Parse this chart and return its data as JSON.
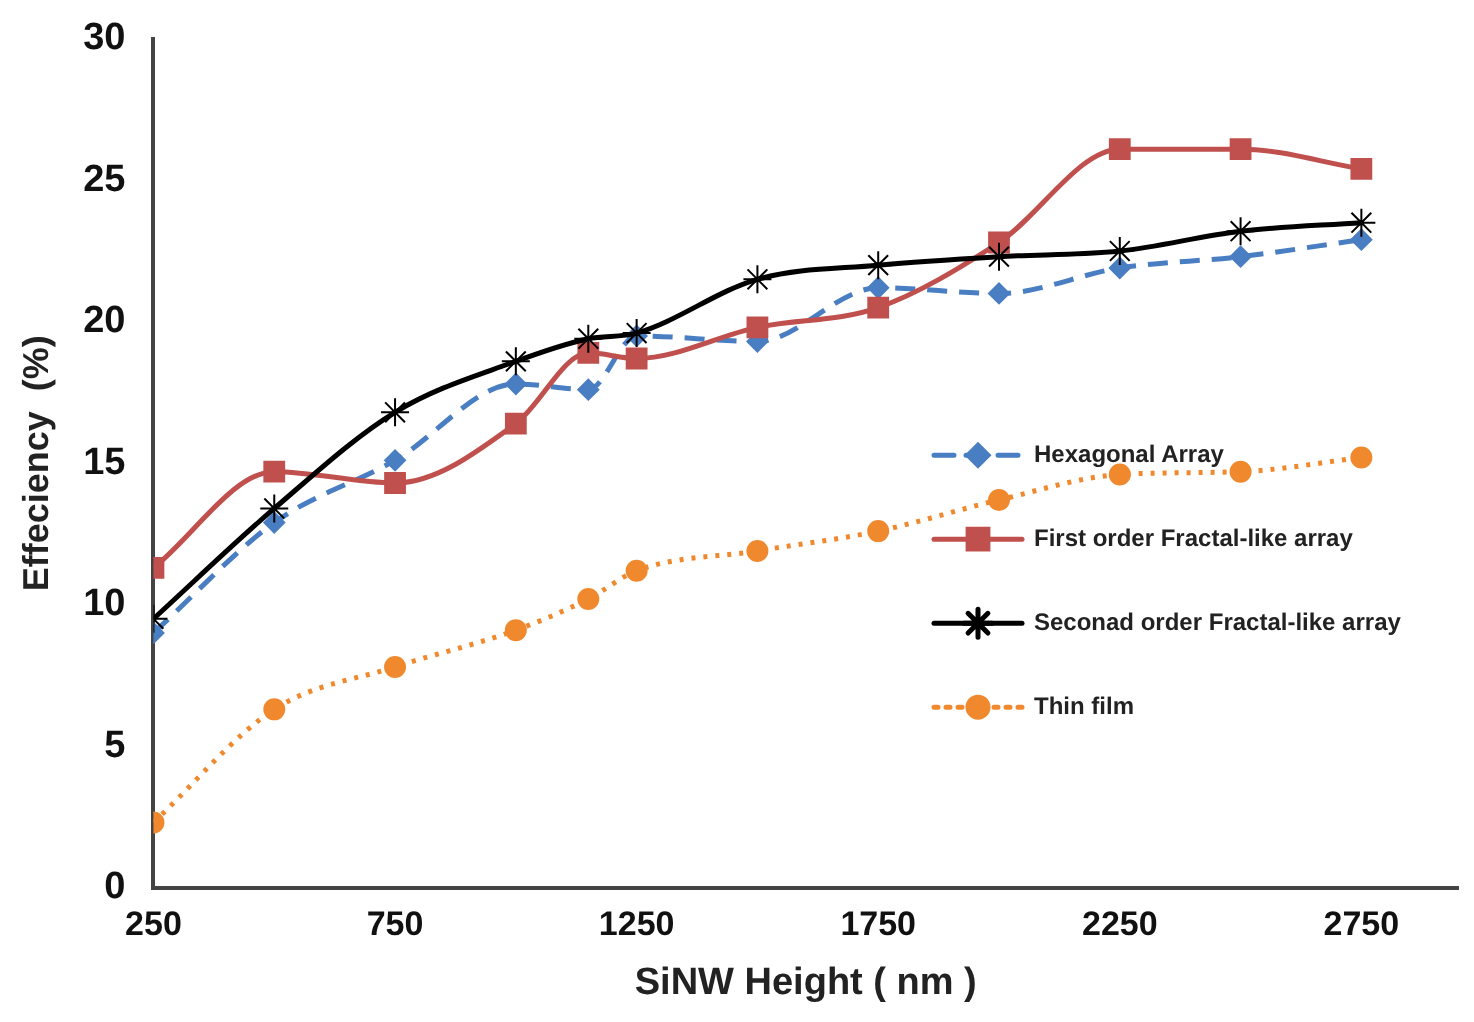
{
  "chart_data": {
    "type": "line",
    "xlabel": "SiNW Height ( nm )",
    "ylabel": "Effeciency  (%)",
    "x": [
      250,
      500,
      750,
      1000,
      1150,
      1250,
      1500,
      1750,
      2000,
      2250,
      2500,
      2750
    ],
    "xlim": [
      250,
      2950
    ],
    "xticks": [
      250,
      750,
      1250,
      1750,
      2250,
      2750
    ],
    "ylim": [
      0,
      30
    ],
    "yticks": [
      0,
      5,
      10,
      15,
      20,
      25,
      30
    ],
    "grid": false,
    "legend": "right",
    "series": [
      {
        "name": "Hexagonal Array",
        "color": "#4a7ec2",
        "marker": "diamond",
        "line_style": "dashed",
        "values": [
          9.0,
          12.9,
          15.1,
          17.8,
          17.6,
          19.5,
          19.3,
          21.2,
          21.0,
          21.9,
          22.3,
          22.9
        ]
      },
      {
        "name": "First order Fractal-like array",
        "color": "#c0504d",
        "marker": "square",
        "line_style": "solid",
        "values": [
          11.3,
          14.7,
          14.3,
          16.4,
          18.9,
          18.7,
          19.8,
          20.5,
          22.8,
          26.1,
          26.1,
          25.4
        ]
      },
      {
        "name": "Seconad order Fractal-like array",
        "color": "#000000",
        "marker": "cross",
        "line_style": "solid",
        "values": [
          9.5,
          13.4,
          16.8,
          18.6,
          19.4,
          19.6,
          21.5,
          22.0,
          22.3,
          22.5,
          23.2,
          23.5
        ]
      },
      {
        "name": "Thin film",
        "color": "#f0892e",
        "marker": "circle",
        "line_style": "dotted",
        "values": [
          2.3,
          6.3,
          7.8,
          9.1,
          10.2,
          11.2,
          11.9,
          12.6,
          13.7,
          14.6,
          14.7,
          15.2
        ]
      }
    ]
  }
}
